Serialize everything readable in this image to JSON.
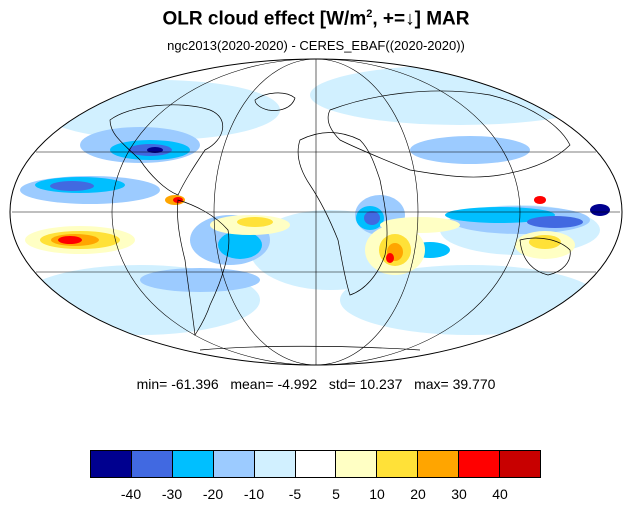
{
  "title_main": "OLR cloud effect [W/m",
  "title_sup": "2",
  "title_rest": ", +=↓]  MAR",
  "subtitle": "ngc2013(2020-2020) - CERES_EBAF((2020-2020))",
  "stats": {
    "min_label": "min=",
    "min": "-61.396",
    "mean_label": "mean=",
    "mean": "-4.992",
    "std_label": "std=",
    "std": "10.237",
    "max_label": "max=",
    "max": "39.770"
  },
  "colorbar": {
    "colors": [
      "#00008f",
      "#4169e1",
      "#00bfff",
      "#9ccbff",
      "#d1f0ff",
      "#ffffff",
      "#ffffc4",
      "#ffe138",
      "#ffa500",
      "#ff0000",
      "#c80000"
    ],
    "tick_labels": [
      "-40",
      "-30",
      "-20",
      "-10",
      "-5",
      "5",
      "10",
      "20",
      "30",
      "40"
    ]
  },
  "map": {
    "projection": "Mollweide",
    "land_color": "none",
    "background_color": "#ffffff"
  }
}
